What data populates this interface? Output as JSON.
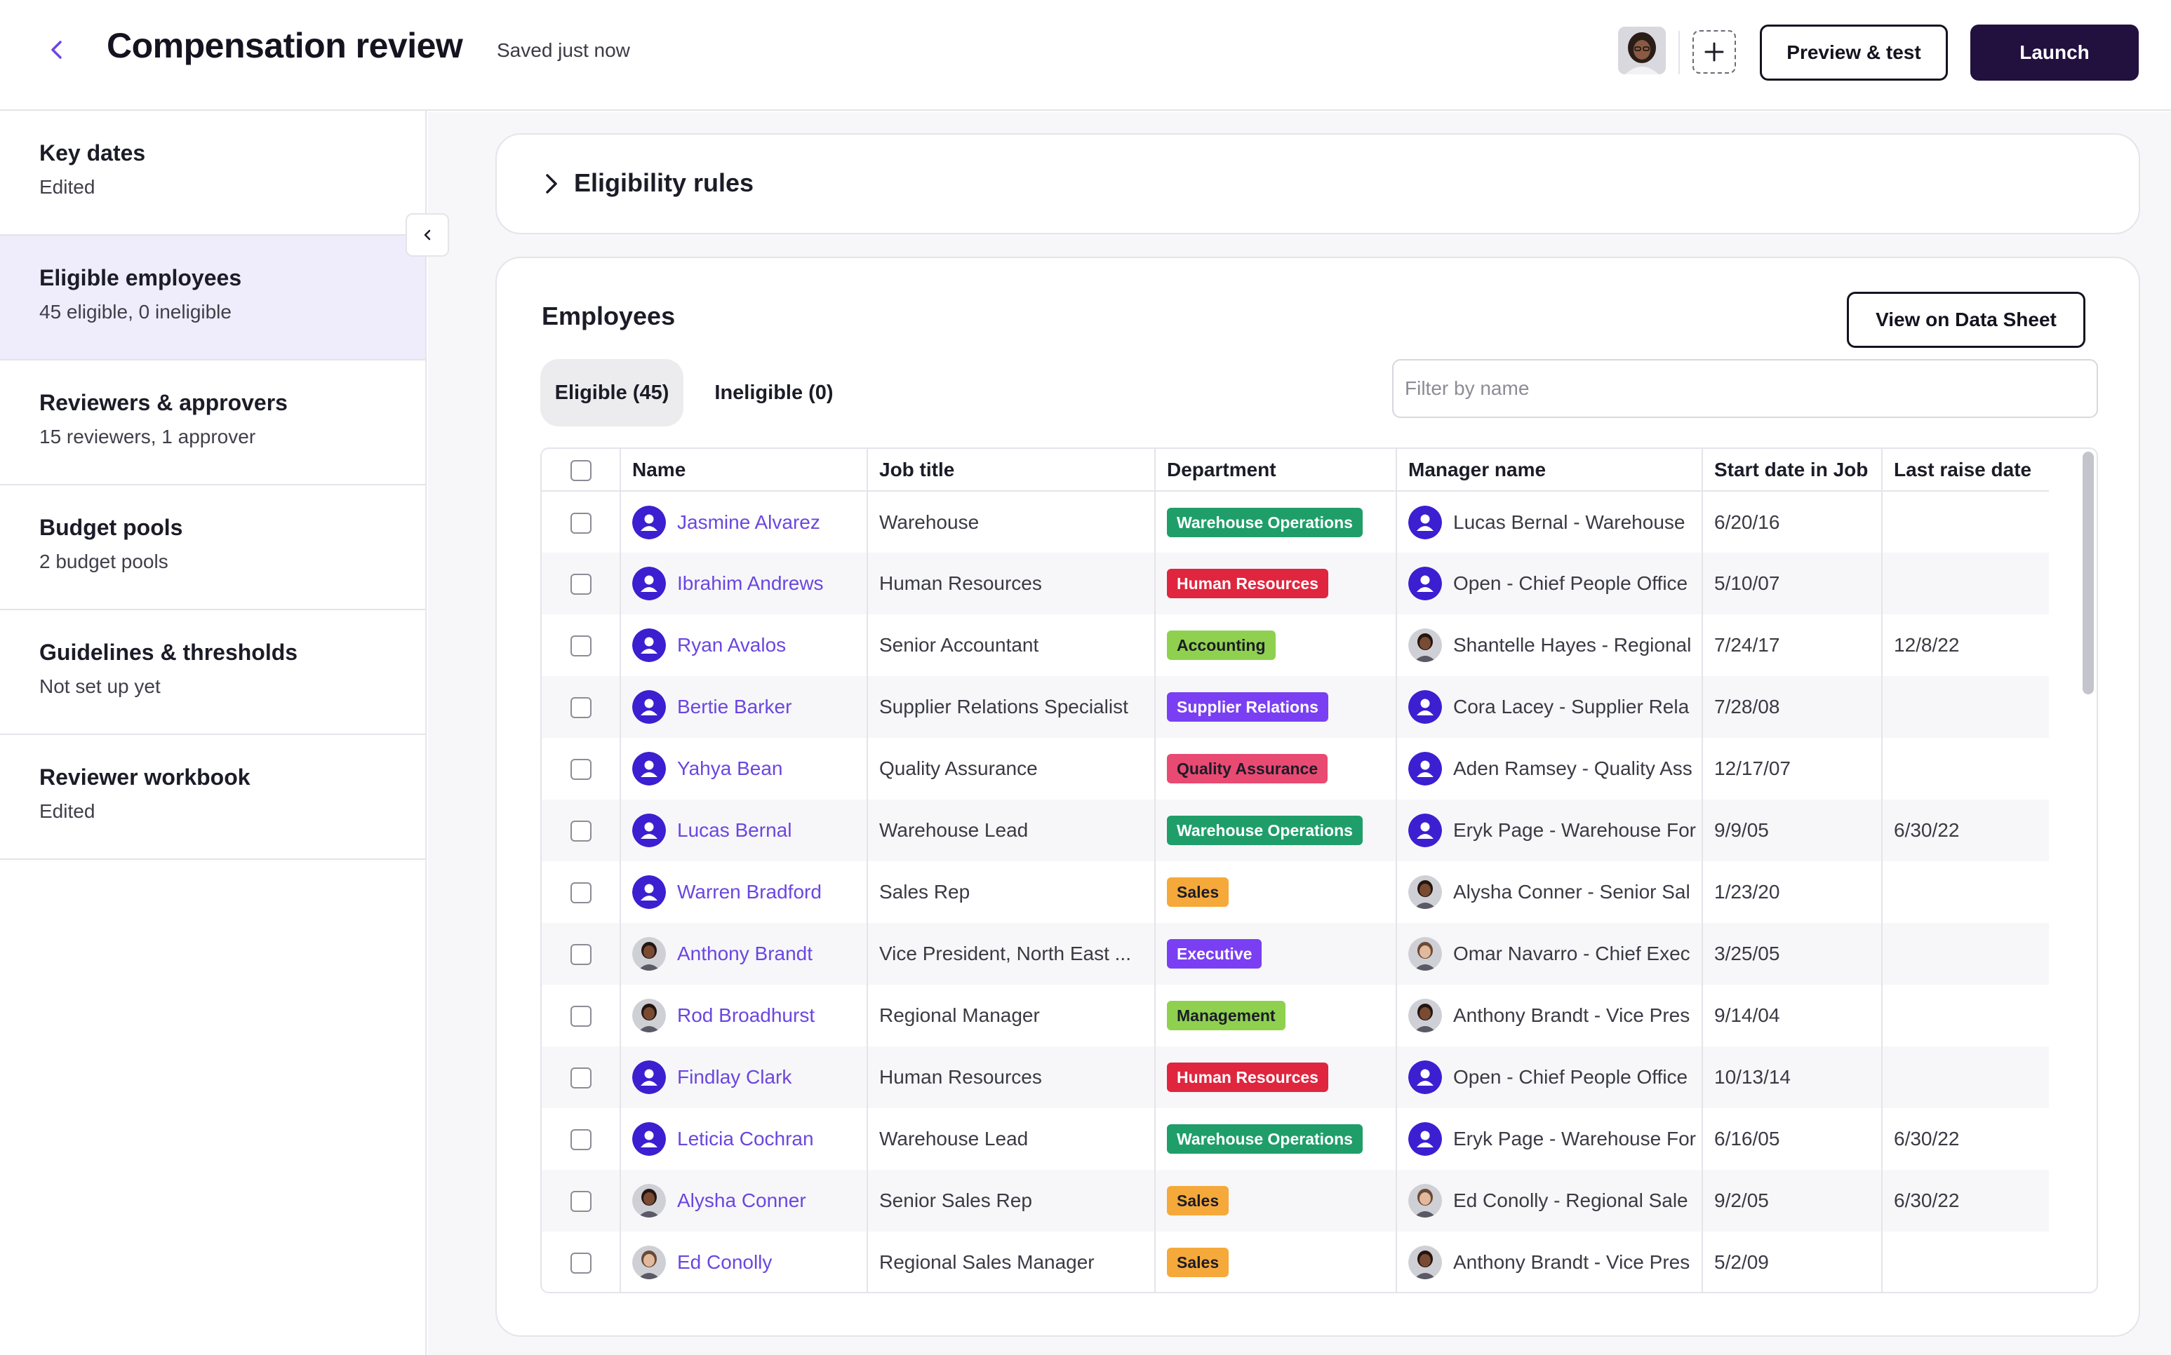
{
  "header": {
    "title": "Compensation review",
    "save_status": "Saved just now",
    "preview_label": "Preview & test",
    "launch_label": "Launch"
  },
  "sidebar": {
    "items": [
      {
        "title": "Key dates",
        "subtitle": "Edited"
      },
      {
        "title": "Eligible employees",
        "subtitle": "45 eligible, 0 ineligible"
      },
      {
        "title": "Reviewers & approvers",
        "subtitle": "15 reviewers, 1 approver"
      },
      {
        "title": "Budget pools",
        "subtitle": "2 budget pools"
      },
      {
        "title": "Guidelines & thresholds",
        "subtitle": "Not set up yet"
      },
      {
        "title": "Reviewer workbook",
        "subtitle": "Edited"
      }
    ]
  },
  "eligibility": {
    "title": "Eligibility rules"
  },
  "employees": {
    "title": "Employees",
    "view_datasheet_label": "View on Data Sheet",
    "tabs": [
      {
        "label": "Eligible (45)"
      },
      {
        "label": "Ineligible (0)"
      }
    ],
    "filter_placeholder": "Filter by name",
    "columns": [
      "Name",
      "Job title",
      "Department",
      "Manager name",
      "Start date in Job",
      "Last raise date"
    ],
    "rows": [
      {
        "name": "Jasmine Alvarez",
        "job": "Warehouse",
        "dept": "Warehouse Operations",
        "manager": "Lucas Bernal - Warehouse",
        "start": "6/20/16",
        "raise": ""
      },
      {
        "name": "Ibrahim Andrews",
        "job": "Human Resources",
        "dept": "Human Resources",
        "manager": "Open - Chief People Office",
        "start": "5/10/07",
        "raise": ""
      },
      {
        "name": "Ryan Avalos",
        "job": "Senior Accountant",
        "dept": "Accounting",
        "manager": "Shantelle Hayes - Regional",
        "start": "7/24/17",
        "raise": "12/8/22"
      },
      {
        "name": "Bertie Barker",
        "job": "Supplier Relations Specialist",
        "dept": "Supplier Relations",
        "manager": "Cora Lacey - Supplier Rela",
        "start": "7/28/08",
        "raise": ""
      },
      {
        "name": "Yahya Bean",
        "job": "Quality Assurance",
        "dept": "Quality Assurance",
        "manager": "Aden Ramsey - Quality Ass",
        "start": "12/17/07",
        "raise": ""
      },
      {
        "name": "Lucas Bernal",
        "job": "Warehouse Lead",
        "dept": "Warehouse Operations",
        "manager": "Eryk Page - Warehouse For",
        "start": "9/9/05",
        "raise": "6/30/22"
      },
      {
        "name": "Warren Bradford",
        "job": "Sales Rep",
        "dept": "Sales",
        "manager": "Alysha Conner - Senior Sal",
        "start": "1/23/20",
        "raise": ""
      },
      {
        "name": "Anthony Brandt",
        "job": "Vice President, North East ...",
        "dept": "Executive",
        "manager": "Omar Navarro - Chief Exec",
        "start": "3/25/05",
        "raise": ""
      },
      {
        "name": "Rod Broadhurst",
        "job": "Regional Manager",
        "dept": "Management",
        "manager": "Anthony Brandt - Vice Pres",
        "start": "9/14/04",
        "raise": ""
      },
      {
        "name": "Findlay Clark",
        "job": "Human Resources",
        "dept": "Human Resources",
        "manager": "Open - Chief People Office",
        "start": "10/13/14",
        "raise": ""
      },
      {
        "name": "Leticia Cochran",
        "job": "Warehouse Lead",
        "dept": "Warehouse Operations",
        "manager": "Eryk Page - Warehouse For",
        "start": "6/16/05",
        "raise": "6/30/22"
      },
      {
        "name": "Alysha Conner",
        "job": "Senior Sales Rep",
        "dept": "Sales",
        "manager": "Ed Conolly - Regional Sale",
        "start": "9/2/05",
        "raise": "6/30/22"
      },
      {
        "name": "Ed Conolly",
        "job": "Regional Sales Manager",
        "dept": "Sales",
        "manager": "Anthony Brandt - Vice Pres",
        "start": "5/2/09",
        "raise": ""
      }
    ]
  },
  "colors": {
    "accent": "#6b46e0",
    "launch_bg": "#22103f",
    "active_nav_bg": "#efecfb",
    "generic_avatar": "#3c1fd0"
  },
  "dept_colors": {
    "Warehouse Operations": {
      "bg": "#1f9e6a",
      "fg": "#ffffff"
    },
    "Human Resources": {
      "bg": "#e0253f",
      "fg": "#ffffff"
    },
    "Accounting": {
      "bg": "#8fd14f",
      "fg": "#1c1c28"
    },
    "Supplier Relations": {
      "bg": "#7a3ff2",
      "fg": "#ffffff"
    },
    "Quality Assurance": {
      "bg": "#e84a72",
      "fg": "#1c1c28"
    },
    "Sales": {
      "bg": "#f5a93a",
      "fg": "#1c1c28"
    },
    "Executive": {
      "bg": "#7a3ff2",
      "fg": "#ffffff"
    },
    "Management": {
      "bg": "#8fd14f",
      "fg": "#1c1c28"
    }
  },
  "avatars": {
    "employee": [
      "generic",
      "generic",
      "generic",
      "generic",
      "generic",
      "generic",
      "generic",
      "photo-dark",
      "photo-dark",
      "generic",
      "generic",
      "photo-dark",
      "photo-light"
    ],
    "manager": [
      "generic",
      "generic",
      "photo-dark",
      "generic",
      "generic",
      "generic",
      "photo-dark",
      "photo-light",
      "photo-dark",
      "generic",
      "generic",
      "photo-light",
      "photo-dark"
    ]
  }
}
